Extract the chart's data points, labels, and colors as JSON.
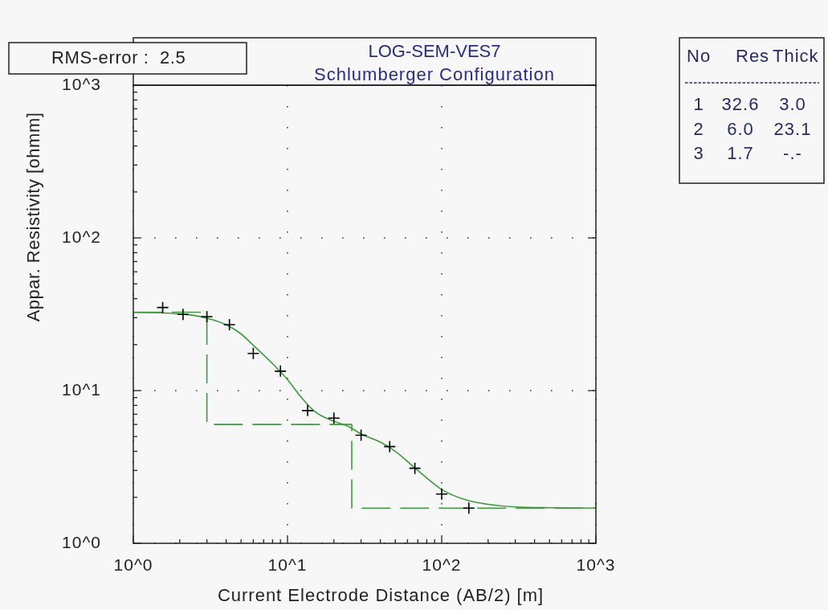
{
  "chart_data": {
    "type": "line",
    "title": "LOG-SEM-VES7",
    "subtitle": "Schlumberger Configuration",
    "xlabel": "Current Electrode Distance (AB/2) [m]",
    "ylabel": "Appar. Resistivity [ohmm]",
    "annotations": [
      "RMS-error :  2.5",
      "No   Res   Thick",
      "1   32.6   3.0",
      "2   6.0   23.1",
      "3   1.7   -.-"
    ],
    "log": "xy",
    "xlim": [
      1,
      1000
    ],
    "ylim": [
      1,
      1000
    ],
    "xticks": [
      {
        "value": 1,
        "label": "10^0"
      },
      {
        "value": 2,
        "label": null
      },
      {
        "value": 3,
        "label": null
      },
      {
        "value": 4,
        "label": null
      },
      {
        "value": 5,
        "label": null
      },
      {
        "value": 6,
        "label": null
      },
      {
        "value": 7,
        "label": null
      },
      {
        "value": 8,
        "label": null
      },
      {
        "value": 9,
        "label": null
      },
      {
        "value": 10,
        "label": "10^1"
      },
      {
        "value": 20,
        "label": null
      },
      {
        "value": 30,
        "label": null
      },
      {
        "value": 40,
        "label": null
      },
      {
        "value": 50,
        "label": null
      },
      {
        "value": 60,
        "label": null
      },
      {
        "value": 70,
        "label": null
      },
      {
        "value": 80,
        "label": null
      },
      {
        "value": 90,
        "label": null
      },
      {
        "value": 100,
        "label": "10^2"
      },
      {
        "value": 200,
        "label": null
      },
      {
        "value": 300,
        "label": null
      },
      {
        "value": 400,
        "label": null
      },
      {
        "value": 500,
        "label": null
      },
      {
        "value": 600,
        "label": null
      },
      {
        "value": 700,
        "label": null
      },
      {
        "value": 800,
        "label": null
      },
      {
        "value": 900,
        "label": null
      },
      {
        "value": 1000,
        "label": "10^3"
      }
    ],
    "yticks": [
      {
        "value": 1,
        "label": "10^0"
      },
      {
        "value": 2,
        "label": null
      },
      {
        "value": 3,
        "label": null
      },
      {
        "value": 4,
        "label": null
      },
      {
        "value": 5,
        "label": null
      },
      {
        "value": 6,
        "label": null
      },
      {
        "value": 7,
        "label": null
      },
      {
        "value": 8,
        "label": null
      },
      {
        "value": 9,
        "label": null
      },
      {
        "value": 10,
        "label": "10^1"
      },
      {
        "value": 20,
        "label": null
      },
      {
        "value": 30,
        "label": null
      },
      {
        "value": 40,
        "label": null
      },
      {
        "value": 50,
        "label": null
      },
      {
        "value": 60,
        "label": null
      },
      {
        "value": 70,
        "label": null
      },
      {
        "value": 80,
        "label": null
      },
      {
        "value": 90,
        "label": null
      },
      {
        "value": 100,
        "label": "10^2"
      },
      {
        "value": 200,
        "label": null
      },
      {
        "value": 300,
        "label": null
      },
      {
        "value": 400,
        "label": null
      },
      {
        "value": 500,
        "label": null
      },
      {
        "value": 600,
        "label": null
      },
      {
        "value": 700,
        "label": null
      },
      {
        "value": 800,
        "label": null
      },
      {
        "value": 900,
        "label": null
      },
      {
        "value": 1000,
        "label": "10^3"
      }
    ],
    "grid": true,
    "series": [
      {
        "color": "#3c9c3c",
        "x": [
          1,
          1.5,
          2,
          2.5,
          3,
          4,
          5,
          6,
          8,
          10,
          12,
          15,
          20,
          25,
          30,
          40,
          50,
          70,
          100,
          150,
          200,
          300,
          500,
          1000
        ],
        "values": [
          32.5,
          32.3,
          31.8,
          31,
          29.8,
          27,
          23.5,
          19.8,
          15,
          11.8,
          9.3,
          7.3,
          6.3,
          5.8,
          5.2,
          4.6,
          4,
          3,
          2.25,
          1.9,
          1.8,
          1.73,
          1.71,
          1.7
        ]
      },
      {
        "type": "step",
        "color": "#3c9c3c",
        "line_style": "dashed",
        "x": [
          1,
          3.0,
          26.1,
          1000
        ],
        "values": [
          32.6,
          6.0,
          1.7,
          1.7
        ]
      },
      {
        "type": "scatter",
        "color": "#000000",
        "marker": "cross",
        "x": [
          1.55,
          2.1,
          3,
          4.2,
          6,
          9,
          13.5,
          20,
          30,
          46,
          67,
          100,
          150
        ],
        "values": [
          35,
          31.5,
          30.5,
          27,
          17.5,
          13.4,
          7.4,
          6.6,
          5.1,
          4.3,
          3.1,
          2.1,
          1.7
        ]
      }
    ]
  }
}
